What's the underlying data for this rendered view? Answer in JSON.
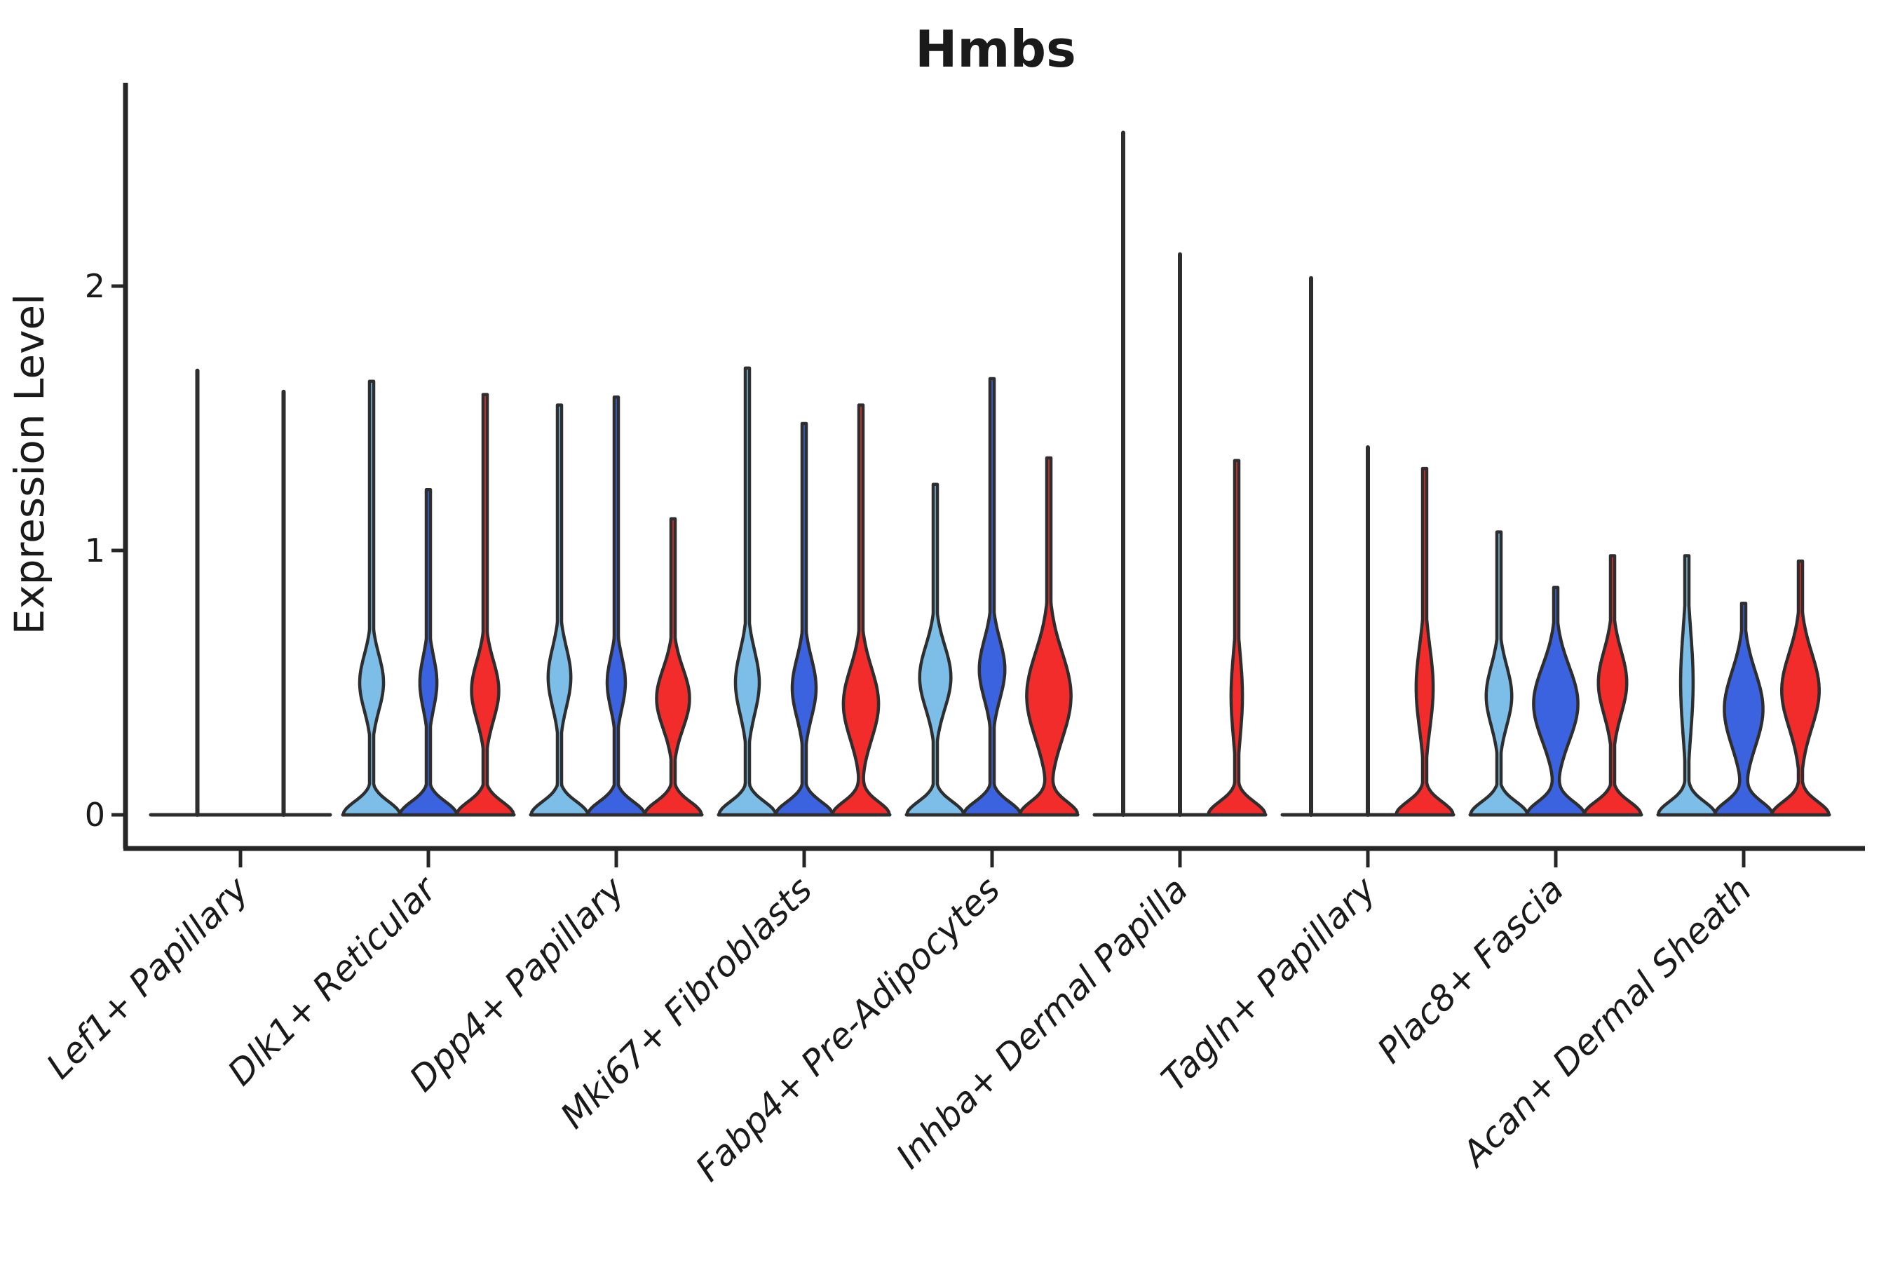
{
  "title": "Hmbs",
  "y_axis": {
    "label": "Expression Level",
    "tick_labels": [
      "0",
      "1",
      "2"
    ]
  },
  "chart_data": {
    "type": "violin",
    "title": "Hmbs",
    "ylabel": "Expression Level",
    "yticks": [
      0,
      1,
      2
    ],
    "ylim": [
      0,
      2.77
    ],
    "grid": false,
    "legend": "none",
    "outline_color": "#2e2e2e",
    "ink_color": "#262626",
    "split_colors": {
      "light_blue": "#7cbee8",
      "dark_blue": "#3b63e0",
      "red": "#f22b2b"
    },
    "groups": [
      {
        "label": "Lef1+ Papillary",
        "violins": [
          {
            "color": "light_blue",
            "max": 1.68,
            "collapsed": true
          },
          {
            "color": "dark_blue",
            "max": 1.6,
            "collapsed": true
          }
        ]
      },
      {
        "label": "Dlk1+ Reticular",
        "violins": [
          {
            "color": "light_blue",
            "max": 1.64,
            "collapsed": false,
            "bulge_center": 0.5,
            "bulge_sigma": 0.15,
            "bulge_amp": 0.42
          },
          {
            "color": "dark_blue",
            "max": 1.23,
            "collapsed": false,
            "bulge_center": 0.5,
            "bulge_sigma": 0.14,
            "bulge_amp": 0.3
          },
          {
            "color": "red",
            "max": 1.59,
            "collapsed": false,
            "bulge_center": 0.47,
            "bulge_sigma": 0.16,
            "bulge_amp": 0.48
          }
        ]
      },
      {
        "label": "Dpp4+ Papillary",
        "violins": [
          {
            "color": "light_blue",
            "max": 1.55,
            "collapsed": false,
            "bulge_center": 0.52,
            "bulge_sigma": 0.16,
            "bulge_amp": 0.4
          },
          {
            "color": "dark_blue",
            "max": 1.58,
            "collapsed": false,
            "bulge_center": 0.5,
            "bulge_sigma": 0.14,
            "bulge_amp": 0.32
          },
          {
            "color": "red",
            "max": 1.12,
            "collapsed": false,
            "bulge_center": 0.44,
            "bulge_sigma": 0.16,
            "bulge_amp": 0.58
          }
        ]
      },
      {
        "label": "Mki67+ Fibroblasts",
        "violins": [
          {
            "color": "light_blue",
            "max": 1.69,
            "collapsed": false,
            "bulge_center": 0.5,
            "bulge_sigma": 0.17,
            "bulge_amp": 0.42
          },
          {
            "color": "dark_blue",
            "max": 1.48,
            "collapsed": false,
            "bulge_center": 0.48,
            "bulge_sigma": 0.16,
            "bulge_amp": 0.42
          },
          {
            "color": "red",
            "max": 1.55,
            "collapsed": false,
            "bulge_center": 0.42,
            "bulge_sigma": 0.19,
            "bulge_amp": 0.62
          }
        ]
      },
      {
        "label": "Fabp4+ Pre-Adipocytes",
        "violins": [
          {
            "color": "light_blue",
            "max": 1.25,
            "collapsed": false,
            "bulge_center": 0.52,
            "bulge_sigma": 0.17,
            "bulge_amp": 0.55
          },
          {
            "color": "dark_blue",
            "max": 1.65,
            "collapsed": false,
            "bulge_center": 0.55,
            "bulge_sigma": 0.16,
            "bulge_amp": 0.45
          },
          {
            "color": "red",
            "max": 1.35,
            "collapsed": false,
            "bulge_center": 0.45,
            "bulge_sigma": 0.23,
            "bulge_amp": 0.78
          }
        ]
      },
      {
        "label": "Inhba+ Dermal Papilla",
        "violins": [
          {
            "color": "light_blue",
            "max": 2.58,
            "collapsed": true
          },
          {
            "color": "dark_blue",
            "max": 2.12,
            "collapsed": true
          },
          {
            "color": "red",
            "max": 1.34,
            "collapsed": false,
            "bulge_center": 0.45,
            "bulge_sigma": 0.22,
            "bulge_amp": 0.2
          }
        ]
      },
      {
        "label": "Tagln+ Papillary",
        "violins": [
          {
            "color": "light_blue",
            "max": 2.03,
            "collapsed": true
          },
          {
            "color": "dark_blue",
            "max": 1.39,
            "collapsed": true
          },
          {
            "color": "red",
            "max": 1.31,
            "collapsed": false,
            "bulge_center": 0.48,
            "bulge_sigma": 0.22,
            "bulge_amp": 0.3
          }
        ]
      },
      {
        "label": "Plac8+ Fascia",
        "violins": [
          {
            "color": "light_blue",
            "max": 1.07,
            "collapsed": false,
            "bulge_center": 0.45,
            "bulge_sigma": 0.16,
            "bulge_amp": 0.45
          },
          {
            "color": "dark_blue",
            "max": 0.86,
            "collapsed": false,
            "bulge_center": 0.42,
            "bulge_sigma": 0.2,
            "bulge_amp": 0.78
          },
          {
            "color": "red",
            "max": 0.98,
            "collapsed": false,
            "bulge_center": 0.5,
            "bulge_sigma": 0.17,
            "bulge_amp": 0.5
          }
        ]
      },
      {
        "label": "Acan+ Dermal Sheath",
        "violins": [
          {
            "color": "light_blue",
            "max": 0.98,
            "collapsed": false,
            "bulge_center": 0.5,
            "bulge_sigma": 0.28,
            "bulge_amp": 0.22
          },
          {
            "color": "dark_blue",
            "max": 0.8,
            "collapsed": false,
            "bulge_center": 0.4,
            "bulge_sigma": 0.2,
            "bulge_amp": 0.68
          },
          {
            "color": "red",
            "max": 0.96,
            "collapsed": false,
            "bulge_center": 0.47,
            "bulge_sigma": 0.2,
            "bulge_amp": 0.66
          }
        ]
      }
    ]
  }
}
